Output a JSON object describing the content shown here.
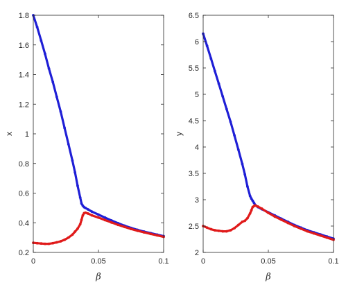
{
  "chart_data": [
    {
      "type": "scatter",
      "xlabel": "β",
      "ylabel": "x",
      "xlim": [
        0,
        0.1
      ],
      "ylim": [
        0.2,
        1.8
      ],
      "xticks": [
        "0",
        "0.05",
        "0.1"
      ],
      "yticks": [
        "0.2",
        "0.4",
        "0.6",
        "0.8",
        "1",
        "1.2",
        "1.4",
        "1.6",
        "1.8"
      ],
      "grid": false,
      "series": [
        {
          "color": "#1f1fd6",
          "x": [
            0,
            0.003,
            0.006,
            0.009,
            0.012,
            0.015,
            0.018,
            0.021,
            0.024,
            0.027,
            0.03,
            0.032,
            0.034,
            0.036,
            0.037,
            0.038,
            0.039,
            0.04,
            0.042,
            0.045,
            0.05,
            0.055,
            0.06,
            0.065,
            0.07,
            0.075,
            0.08,
            0.085,
            0.09,
            0.095,
            0.1
          ],
          "y": [
            1.8,
            1.72,
            1.63,
            1.54,
            1.44,
            1.35,
            1.25,
            1.15,
            1.04,
            0.93,
            0.82,
            0.74,
            0.65,
            0.57,
            0.53,
            0.515,
            0.505,
            0.5,
            0.49,
            0.475,
            0.455,
            0.435,
            0.415,
            0.397,
            0.38,
            0.365,
            0.352,
            0.34,
            0.33,
            0.32,
            0.31
          ]
        },
        {
          "color": "#e01a1a",
          "x": [
            0,
            0.003,
            0.006,
            0.009,
            0.012,
            0.015,
            0.018,
            0.021,
            0.024,
            0.027,
            0.03,
            0.032,
            0.034,
            0.036,
            0.037,
            0.038,
            0.039,
            0.04,
            0.042,
            0.045,
            0.05,
            0.055,
            0.06,
            0.065,
            0.07,
            0.075,
            0.08,
            0.085,
            0.09,
            0.095,
            0.1
          ],
          "y": [
            0.265,
            0.262,
            0.26,
            0.258,
            0.258,
            0.262,
            0.268,
            0.275,
            0.285,
            0.3,
            0.32,
            0.34,
            0.36,
            0.39,
            0.42,
            0.45,
            0.465,
            0.468,
            0.462,
            0.45,
            0.435,
            0.418,
            0.402,
            0.386,
            0.372,
            0.358,
            0.346,
            0.335,
            0.325,
            0.315,
            0.305
          ]
        }
      ]
    },
    {
      "type": "scatter",
      "xlabel": "β",
      "ylabel": "y",
      "xlim": [
        0,
        0.1
      ],
      "ylim": [
        2,
        6.5
      ],
      "xticks": [
        "0",
        "0.05",
        "0.1"
      ],
      "yticks": [
        "2",
        "2.5",
        "3",
        "3.5",
        "4",
        "4.5",
        "5",
        "5.5",
        "6",
        "6.5"
      ],
      "grid": false,
      "series": [
        {
          "color": "#1f1fd6",
          "x": [
            0,
            0.003,
            0.006,
            0.009,
            0.012,
            0.015,
            0.018,
            0.021,
            0.024,
            0.027,
            0.03,
            0.032,
            0.034,
            0.036,
            0.037,
            0.038,
            0.039,
            0.04,
            0.042,
            0.045,
            0.05,
            0.055,
            0.06,
            0.065,
            0.07,
            0.075,
            0.08,
            0.085,
            0.09,
            0.095,
            0.1
          ],
          "y": [
            6.15,
            5.92,
            5.68,
            5.44,
            5.2,
            4.96,
            4.72,
            4.48,
            4.22,
            3.95,
            3.68,
            3.48,
            3.25,
            3.07,
            3.02,
            2.98,
            2.94,
            2.9,
            2.86,
            2.82,
            2.76,
            2.7,
            2.64,
            2.58,
            2.52,
            2.47,
            2.42,
            2.38,
            2.34,
            2.3,
            2.26
          ]
        },
        {
          "color": "#e01a1a",
          "x": [
            0,
            0.003,
            0.006,
            0.009,
            0.012,
            0.015,
            0.018,
            0.021,
            0.024,
            0.027,
            0.03,
            0.032,
            0.034,
            0.036,
            0.037,
            0.038,
            0.039,
            0.04,
            0.042,
            0.045,
            0.05,
            0.055,
            0.06,
            0.065,
            0.07,
            0.075,
            0.08,
            0.085,
            0.09,
            0.095,
            0.1
          ],
          "y": [
            2.5,
            2.47,
            2.44,
            2.42,
            2.41,
            2.4,
            2.4,
            2.42,
            2.46,
            2.52,
            2.58,
            2.6,
            2.65,
            2.74,
            2.8,
            2.86,
            2.88,
            2.89,
            2.87,
            2.83,
            2.75,
            2.68,
            2.62,
            2.56,
            2.5,
            2.45,
            2.4,
            2.36,
            2.32,
            2.28,
            2.24
          ]
        }
      ]
    }
  ]
}
